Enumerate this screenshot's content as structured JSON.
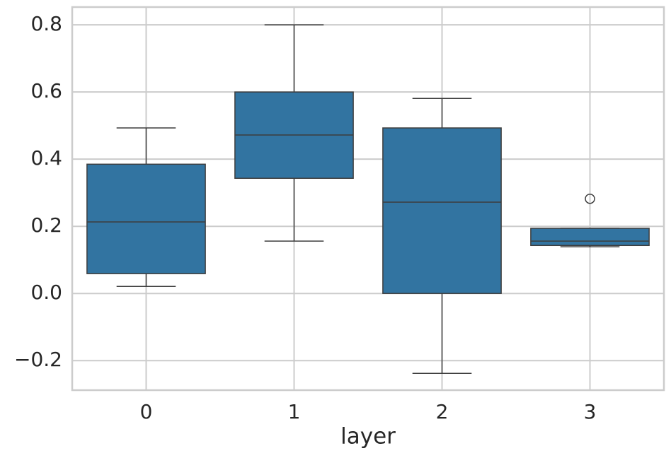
{
  "chart_data": {
    "type": "box",
    "x_label": "layer",
    "categories": [
      "0",
      "1",
      "2",
      "3"
    ],
    "color": "#3274a1",
    "edge_color": "#3d3d3d",
    "grid": true,
    "ylim": [
      -0.288,
      0.853
    ],
    "yticks": [
      {
        "value": -0.2,
        "label": "−0.2"
      },
      {
        "value": 0,
        "label": "0.0"
      },
      0.2,
      0.4,
      0.6,
      0.8
    ],
    "boxes": [
      {
        "whislo": 0.021,
        "q1": 0.059,
        "med": 0.213,
        "q3": 0.385,
        "whishi": 0.493,
        "fliers": []
      },
      {
        "whislo": 0.156,
        "q1": 0.343,
        "med": 0.472,
        "q3": 0.6,
        "whishi": 0.8,
        "fliers": []
      },
      {
        "whislo": -0.238,
        "q1": 0.0,
        "med": 0.272,
        "q3": 0.493,
        "whishi": 0.581,
        "fliers": []
      },
      {
        "whislo": 0.139,
        "q1": 0.143,
        "med": 0.156,
        "q3": 0.194,
        "whishi": 0.194,
        "fliers": [
          0.282
        ]
      }
    ]
  }
}
